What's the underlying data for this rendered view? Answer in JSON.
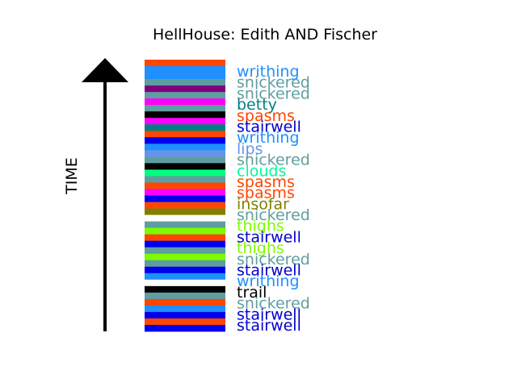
{
  "chart_data": {
    "type": "bar",
    "title": "HellHouse: Edith AND Fischer",
    "ylabel": "TIME",
    "bands": [
      {
        "color": "#ff4500"
      },
      {
        "color": "#1e90ff"
      },
      {
        "color": "#1e90ff"
      },
      {
        "color": "#5f9ea0"
      },
      {
        "color": "#800080"
      },
      {
        "color": "#5f9ea0"
      },
      {
        "color": "#ff00ff"
      },
      {
        "color": "#5f9ea0"
      },
      {
        "color": "#000000"
      },
      {
        "color": "#ff00ff"
      },
      {
        "color": "#008080"
      },
      {
        "color": "#ff4500"
      },
      {
        "color": "#0000ee"
      },
      {
        "color": "#1e90ff"
      },
      {
        "color": "#6495ed"
      },
      {
        "color": "#5f9ea0"
      },
      {
        "color": "#000000"
      },
      {
        "color": "#00ff7f"
      },
      {
        "color": "#5f9ea0"
      },
      {
        "color": "#ff4500"
      },
      {
        "color": "#ff00ff"
      },
      {
        "color": "#0000ee"
      },
      {
        "color": "#ff4500"
      },
      {
        "color": "#808000"
      },
      {
        "color": "#ffffff"
      },
      {
        "color": "#5f9ea0"
      },
      {
        "color": "#7cfc00"
      },
      {
        "color": "#ff4500"
      },
      {
        "color": "#0000ee"
      },
      {
        "color": "#5f9ea0"
      },
      {
        "color": "#7cfc00"
      },
      {
        "color": "#5f9ea0"
      },
      {
        "color": "#0000ee"
      },
      {
        "color": "#1e90ff"
      },
      {
        "color": "#ffffff"
      },
      {
        "color": "#000000"
      },
      {
        "color": "#5f9ea0"
      },
      {
        "color": "#ff4500"
      },
      {
        "color": "#1e90ff"
      },
      {
        "color": "#0000ee"
      },
      {
        "color": "#ff4500"
      },
      {
        "color": "#0000ee"
      }
    ],
    "words": [
      {
        "text": "writhing",
        "color": "#1e90ff"
      },
      {
        "text": "snickered",
        "color": "#5f9ea0"
      },
      {
        "text": "snickered",
        "color": "#5f9ea0"
      },
      {
        "text": "betty",
        "color": "#008080"
      },
      {
        "text": "spasms",
        "color": "#ff4500"
      },
      {
        "text": "stairwell",
        "color": "#0000cd"
      },
      {
        "text": "writhing",
        "color": "#1e90ff"
      },
      {
        "text": "lips",
        "color": "#6495ed"
      },
      {
        "text": "snickered",
        "color": "#5f9ea0"
      },
      {
        "text": "clouds",
        "color": "#00fa9a"
      },
      {
        "text": "spasms",
        "color": "#ff4500"
      },
      {
        "text": "spasms",
        "color": "#ff4500"
      },
      {
        "text": "insofar",
        "color": "#808000"
      },
      {
        "text": "snickered",
        "color": "#5f9ea0"
      },
      {
        "text": "thighs",
        "color": "#7cfc00"
      },
      {
        "text": "stairwell",
        "color": "#0000cd"
      },
      {
        "text": "thighs",
        "color": "#7cfc00"
      },
      {
        "text": "snickered",
        "color": "#5f9ea0"
      },
      {
        "text": "stairwell",
        "color": "#0000cd"
      },
      {
        "text": "writhing",
        "color": "#1e90ff"
      },
      {
        "text": "trail",
        "color": "#000000"
      },
      {
        "text": "snickered",
        "color": "#5f9ea0"
      },
      {
        "text": "stairwell",
        "color": "#0000cd"
      },
      {
        "text": "stairwell",
        "color": "#0000cd"
      }
    ]
  }
}
